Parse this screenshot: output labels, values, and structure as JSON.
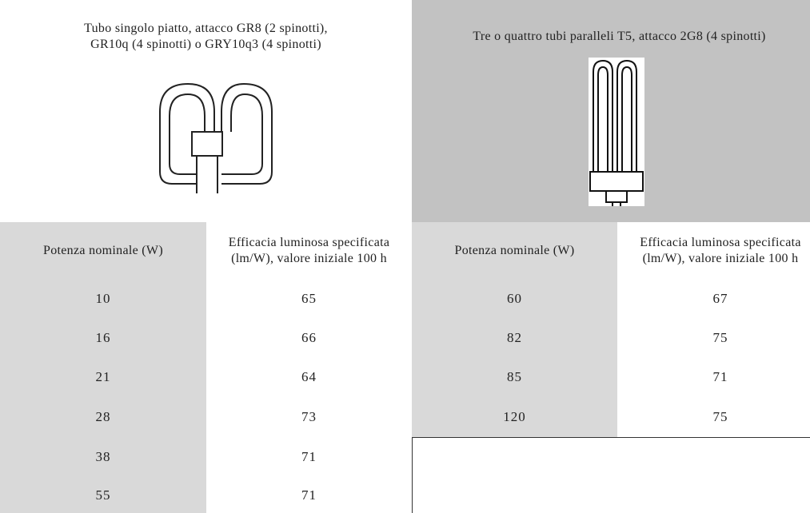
{
  "left": {
    "title_lines": [
      "Tubo singolo piatto, attacco GR8 (2 spinotti),",
      "GR10q (4 spinotti) o GRY10q3 (4 spinotti)"
    ],
    "headers": [
      [
        "Potenza nominale (W)"
      ],
      [
        "Efficacia luminosa specificata",
        "(lm/W), valore iniziale 100 h"
      ]
    ],
    "rows": [
      [
        "10",
        "65"
      ],
      [
        "16",
        "66"
      ],
      [
        "21",
        "64"
      ],
      [
        "28",
        "73"
      ],
      [
        "38",
        "71"
      ],
      [
        "55",
        "71"
      ]
    ]
  },
  "right": {
    "title_lines": [
      "Tre o quattro tubi paralleli T5, attacco 2G8 (4 spinotti)"
    ],
    "headers": [
      [
        "Potenza nominale (W)"
      ],
      [
        "Efficacia luminosa specificata",
        "(lm/W), valore iniziale 100 h"
      ]
    ],
    "rows": [
      [
        "60",
        "67"
      ],
      [
        "82",
        "75"
      ],
      [
        "85",
        "71"
      ],
      [
        "120",
        "75"
      ]
    ]
  }
}
